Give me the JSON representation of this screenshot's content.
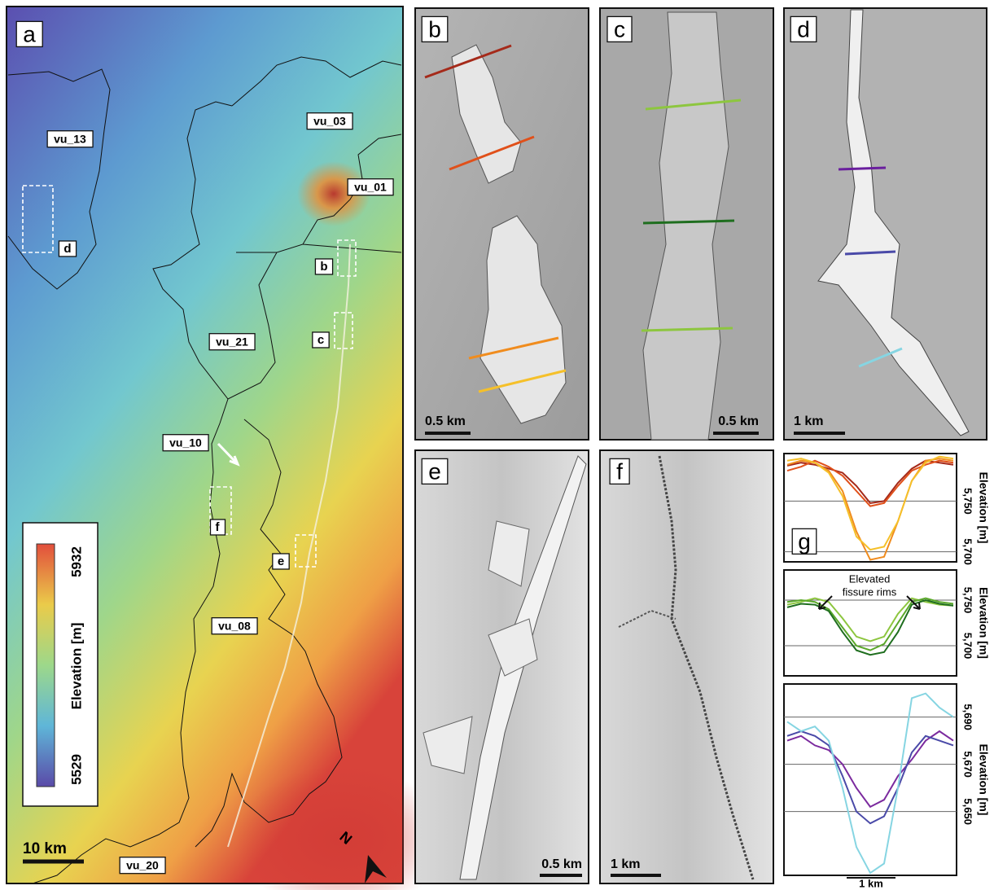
{
  "panel_a": {
    "label": "a",
    "units": [
      "vu_13",
      "vu_03",
      "vu_01",
      "vu_21",
      "vu_10",
      "vu_08",
      "vu_20"
    ],
    "insets": [
      "d",
      "b",
      "c",
      "f",
      "e"
    ],
    "legend": {
      "max": 5932,
      "title": "Elevation [m]",
      "min": 5529
    },
    "scale_bar": "10 km",
    "north": "N"
  },
  "panels": [
    {
      "label": "b",
      "scale_bar": "0.5 km"
    },
    {
      "label": "c",
      "scale_bar": "0.5 km"
    },
    {
      "label": "d",
      "scale_bar": "1 km"
    },
    {
      "label": "e",
      "scale_bar": "0.5 km"
    },
    {
      "label": "f",
      "scale_bar": "1 km"
    }
  ],
  "profiles": {
    "label": "g",
    "annotation": [
      "Elevated",
      "fissure rims"
    ],
    "x_scale": "1 km",
    "charts": [
      {
        "type": "line",
        "ylabel": "Elevation [m]",
        "ylim": [
          5690,
          5797
        ],
        "yticks": [
          {
            "value": 5750,
            "label": "5,750"
          },
          {
            "value": 5700,
            "label": "5,700"
          }
        ],
        "series": [
          {
            "color": "#a52a1a",
            "values": [
              5785,
              5788,
              5786,
              5782,
              5778,
              5765,
              5748,
              5750,
              5768,
              5782,
              5790,
              5788,
              5786
            ]
          },
          {
            "color": "#e0501a",
            "values": [
              5780,
              5784,
              5790,
              5784,
              5775,
              5760,
              5745,
              5748,
              5765,
              5780,
              5786,
              5790,
              5788
            ]
          },
          {
            "color": "#f08c1e",
            "values": [
              5786,
              5790,
              5788,
              5780,
              5760,
              5720,
              5692,
              5695,
              5730,
              5770,
              5790,
              5792,
              5790
            ]
          },
          {
            "color": "#f5c02a",
            "values": [
              5790,
              5792,
              5788,
              5778,
              5755,
              5715,
              5702,
              5705,
              5730,
              5770,
              5788,
              5794,
              5792
            ]
          }
        ]
      },
      {
        "type": "line",
        "ylabel": "Elevation [m]",
        "ylim": [
          5667,
          5783
        ],
        "yticks": [
          {
            "value": 5750,
            "label": "5,750"
          },
          {
            "value": 5700,
            "label": "5,700"
          }
        ],
        "series": [
          {
            "color": "#8dc63f",
            "values": [
              5745,
              5748,
              5752,
              5748,
              5730,
              5710,
              5705,
              5710,
              5735,
              5752,
              5748,
              5745,
              5744
            ]
          },
          {
            "color": "#5aa82a",
            "values": [
              5748,
              5750,
              5748,
              5740,
              5720,
              5700,
              5695,
              5702,
              5725,
              5748,
              5752,
              5748,
              5746
            ]
          },
          {
            "color": "#1f6e1f",
            "values": [
              5742,
              5746,
              5745,
              5738,
              5715,
              5695,
              5690,
              5693,
              5715,
              5745,
              5750,
              5746,
              5744
            ]
          }
        ]
      },
      {
        "type": "line",
        "ylabel": "Elevation [m]",
        "ylim": [
          5623,
          5704
        ],
        "yticks": [
          {
            "value": 5690,
            "label": "5,690"
          },
          {
            "value": 5670,
            "label": "5,670"
          },
          {
            "value": 5650,
            "label": "5,650"
          }
        ],
        "series": [
          {
            "color": "#7b2a9e",
            "values": [
              5680,
              5682,
              5678,
              5676,
              5670,
              5660,
              5652,
              5655,
              5665,
              5672,
              5680,
              5684,
              5680
            ]
          },
          {
            "color": "#4a4aa8",
            "values": [
              5682,
              5684,
              5682,
              5678,
              5665,
              5650,
              5645,
              5648,
              5660,
              5675,
              5682,
              5680,
              5678
            ]
          },
          {
            "color": "#86d5e2",
            "values": [
              5688,
              5684,
              5686,
              5680,
              5660,
              5635,
              5624,
              5628,
              5660,
              5698,
              5700,
              5694,
              5690
            ]
          }
        ]
      }
    ]
  }
}
